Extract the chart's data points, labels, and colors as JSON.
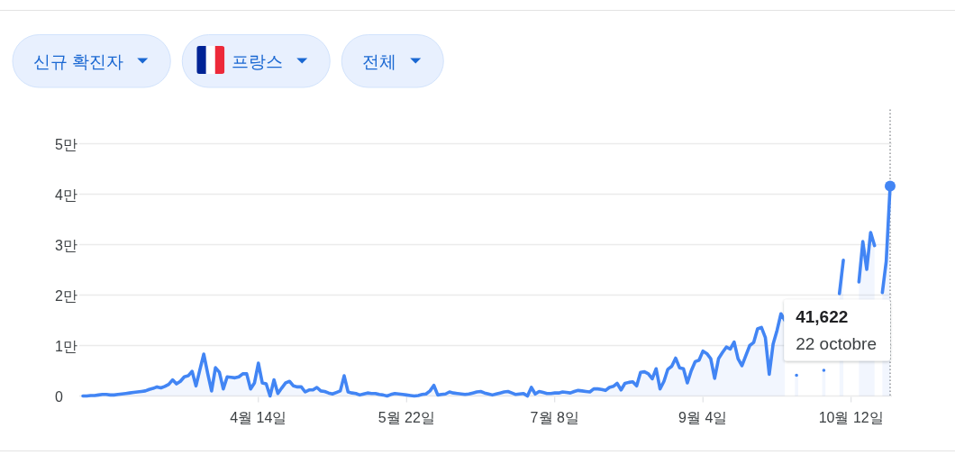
{
  "chart_data": {
    "type": "area",
    "annotations": [
      "신규 확진자",
      "프랑스",
      "전체",
      "41,622",
      "22 octobre"
    ],
    "categories": [
      null,
      null,
      null,
      null,
      null,
      null,
      null,
      null,
      null,
      null,
      null,
      null,
      null,
      null,
      null,
      null,
      null,
      null,
      null,
      null,
      null,
      null,
      null,
      null,
      null,
      null,
      null,
      null,
      null,
      null,
      null,
      null,
      null,
      null,
      null,
      null,
      null,
      null,
      null,
      null,
      null,
      null,
      null,
      null,
      null,
      "4월 14일",
      null,
      null,
      null,
      null,
      null,
      null,
      null,
      null,
      null,
      null,
      null,
      null,
      null,
      null,
      null,
      null,
      null,
      null,
      null,
      null,
      null,
      null,
      null,
      null,
      null,
      null,
      null,
      null,
      null,
      null,
      null,
      null,
      null,
      null,
      null,
      null,
      null,
      "5월 22일",
      null,
      null,
      null,
      null,
      null,
      null,
      null,
      null,
      null,
      null,
      null,
      null,
      null,
      null,
      null,
      null,
      null,
      null,
      null,
      null,
      null,
      null,
      null,
      null,
      null,
      null,
      null,
      null,
      null,
      null,
      null,
      null,
      null,
      null,
      null,
      null,
      null,
      "7월 8일",
      null,
      null,
      null,
      null,
      null,
      null,
      null,
      null,
      null,
      null,
      null,
      null,
      null,
      null,
      null,
      null,
      null,
      null,
      null,
      null,
      null,
      null,
      null,
      null,
      null,
      null,
      null,
      null,
      null,
      null,
      null,
      null,
      null,
      null,
      null,
      null,
      null,
      "9월 4일",
      null,
      null,
      null,
      null,
      null,
      null,
      null,
      null,
      null,
      null,
      null,
      null,
      null,
      null,
      null,
      null,
      null,
      null,
      null,
      null,
      null,
      null,
      null,
      null,
      null,
      null,
      null,
      null,
      null,
      null,
      null,
      null,
      null,
      null,
      null,
      null,
      null,
      "10월 12일",
      null,
      null,
      null,
      null,
      null,
      null,
      null,
      null,
      null,
      null
    ],
    "ylim": [
      0,
      5
    ],
    "yticks": [
      0,
      {
        "value": 1,
        "label": "1만"
      },
      {
        "value": 2,
        "label": "2만"
      },
      {
        "value": 3,
        "label": "3만"
      },
      {
        "value": 4,
        "label": "4만"
      },
      {
        "value": 5,
        "label": "5만"
      }
    ],
    "grid": "y",
    "series": [
      {
        "color": "#4285f4",
        "values": [
          0,
          0,
          0.01,
          0.01,
          0.02,
          0.03,
          0.03,
          0.02,
          0.02,
          0.03,
          0.04,
          0.05,
          0.06,
          0.07,
          0.08,
          0.09,
          0.1,
          0.13,
          0.15,
          0.18,
          0.16,
          0.19,
          0.23,
          0.32,
          0.24,
          0.29,
          0.38,
          0.4,
          0.49,
          0.2,
          0.52,
          0.83,
          0.45,
          0.1,
          0.56,
          0.47,
          0.14,
          0.38,
          0.37,
          0.36,
          0.38,
          0.44,
          0.44,
          0.14,
          0.26,
          0.65,
          0.26,
          0.24,
          0,
          0.32,
          0.05,
          0.16,
          0.26,
          0.29,
          0.2,
          0.18,
          0.18,
          0.08,
          0.12,
          0.12,
          0.17,
          0.1,
          0.09,
          0.06,
          0.04,
          0.07,
          0.1,
          0.4,
          0.08,
          0.06,
          0.05,
          0.02,
          0.04,
          0.06,
          0.05,
          0.05,
          0.03,
          0.02,
          0,
          0.03,
          0.05,
          0.04,
          0.03,
          0.02,
          0.01,
          0,
          0.01,
          0.03,
          0.04,
          0.1,
          0.21,
          0.02,
          0.03,
          0.04,
          0.08,
          0.06,
          0.05,
          0.04,
          0.03,
          0.04,
          0.06,
          0.08,
          0.09,
          0.06,
          0.04,
          0.02,
          0.04,
          0.06,
          0.08,
          0.09,
          0.06,
          0.03,
          0.04,
          0.05,
          0,
          0.17,
          0.04,
          0.09,
          0.07,
          0.05,
          0.05,
          0.06,
          0.06,
          0.08,
          0.07,
          0.06,
          0.09,
          0.11,
          0.1,
          0.09,
          0.08,
          0.14,
          0.14,
          0.13,
          0.11,
          0.17,
          0.19,
          0.25,
          0.12,
          0.25,
          0.27,
          0.28,
          0.2,
          0.47,
          0.48,
          0.44,
          0.34,
          0.54,
          0.14,
          0.29,
          0.53,
          0.59,
          0.75,
          0.56,
          0.54,
          0.26,
          0.5,
          0.68,
          0.71,
          0.89,
          0.84,
          0.74,
          0.35,
          0.74,
          0.86,
          0.97,
          0.93,
          1.07,
          0.74,
          0.6,
          0.8,
          1,
          1.06,
          1.33,
          1.36,
          1.16,
          0.43,
          1.03,
          1.3,
          1.63,
          1.5,
          null,
          null,
          0.41,
          null,
          null,
          null,
          null,
          null,
          null,
          0.51,
          null,
          null,
          null,
          2.03,
          2.69,
          null,
          null,
          null,
          2.26,
          3.06,
          2.51,
          3.24,
          2.98,
          null,
          2.05,
          2.67,
          4.16
        ]
      },
      {
        "type": "scatter",
        "color": "#4285f4",
        "marker": "circle",
        "values": [
          null,
          null,
          null,
          null,
          null,
          null,
          null,
          null,
          null,
          null,
          null,
          null,
          null,
          null,
          null,
          null,
          null,
          null,
          null,
          null,
          null,
          null,
          null,
          null,
          null,
          null,
          null,
          null,
          null,
          null,
          null,
          null,
          null,
          null,
          null,
          null,
          null,
          null,
          null,
          null,
          null,
          null,
          null,
          null,
          null,
          null,
          null,
          null,
          null,
          null,
          null,
          null,
          null,
          null,
          null,
          null,
          null,
          null,
          null,
          null,
          null,
          null,
          null,
          null,
          null,
          null,
          null,
          null,
          null,
          null,
          null,
          null,
          null,
          null,
          null,
          null,
          null,
          null,
          null,
          null,
          null,
          null,
          null,
          null,
          null,
          null,
          null,
          null,
          null,
          null,
          null,
          null,
          null,
          null,
          null,
          null,
          null,
          null,
          null,
          null,
          null,
          null,
          null,
          null,
          null,
          null,
          null,
          null,
          null,
          null,
          null,
          null,
          null,
          null,
          null,
          null,
          null,
          null,
          null,
          null,
          null,
          null,
          null,
          null,
          null,
          null,
          null,
          null,
          null,
          null,
          null,
          null,
          null,
          null,
          null,
          null,
          null,
          null,
          null,
          null,
          null,
          null,
          null,
          null,
          null,
          null,
          null,
          null,
          null,
          null,
          null,
          null,
          null,
          null,
          null,
          null,
          null,
          null,
          null,
          null,
          null,
          null,
          null,
          null,
          null,
          null,
          null,
          null,
          null,
          null,
          null,
          null,
          null,
          null,
          null,
          null,
          null,
          null,
          null,
          null,
          null,
          null,
          null,
          null,
          null,
          null,
          null,
          null,
          null,
          null,
          null,
          null,
          null,
          null,
          null,
          null,
          null,
          null,
          null,
          null,
          null,
          null,
          null,
          null,
          null,
          null,
          null,
          4.16
        ]
      }
    ]
  }
}
